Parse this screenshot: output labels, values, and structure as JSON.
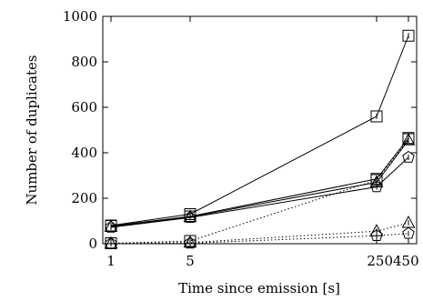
{
  "chart_data": {
    "type": "line",
    "xlabel": "Time since emission [s]",
    "ylabel": "Number of duplicates",
    "x": [
      1,
      5,
      250,
      450
    ],
    "x_tick_labels": [
      "1",
      "5",
      "250450"
    ],
    "ylim": [
      0,
      1000
    ],
    "y_ticks": [
      0,
      200,
      400,
      600,
      800,
      1000
    ],
    "grid": false,
    "series": [
      {
        "marker": "square",
        "line": "solid",
        "values": [
          80,
          130,
          560,
          915
        ]
      },
      {
        "marker": "square",
        "line": "solid",
        "values": [
          78,
          120,
          285,
          465
        ]
      },
      {
        "marker": "triangle",
        "line": "solid",
        "values": [
          75,
          118,
          270,
          455
        ]
      },
      {
        "marker": "pentagon",
        "line": "solid",
        "values": [
          72,
          115,
          250,
          380
        ]
      },
      {
        "marker": "square",
        "line": "dotted",
        "values": [
          2,
          12,
          280,
          460
        ]
      },
      {
        "marker": "triangle",
        "line": "dotted",
        "values": [
          1,
          5,
          55,
          92
        ]
      },
      {
        "marker": "pentagon",
        "line": "dotted",
        "values": [
          0,
          2,
          35,
          45
        ]
      }
    ]
  }
}
